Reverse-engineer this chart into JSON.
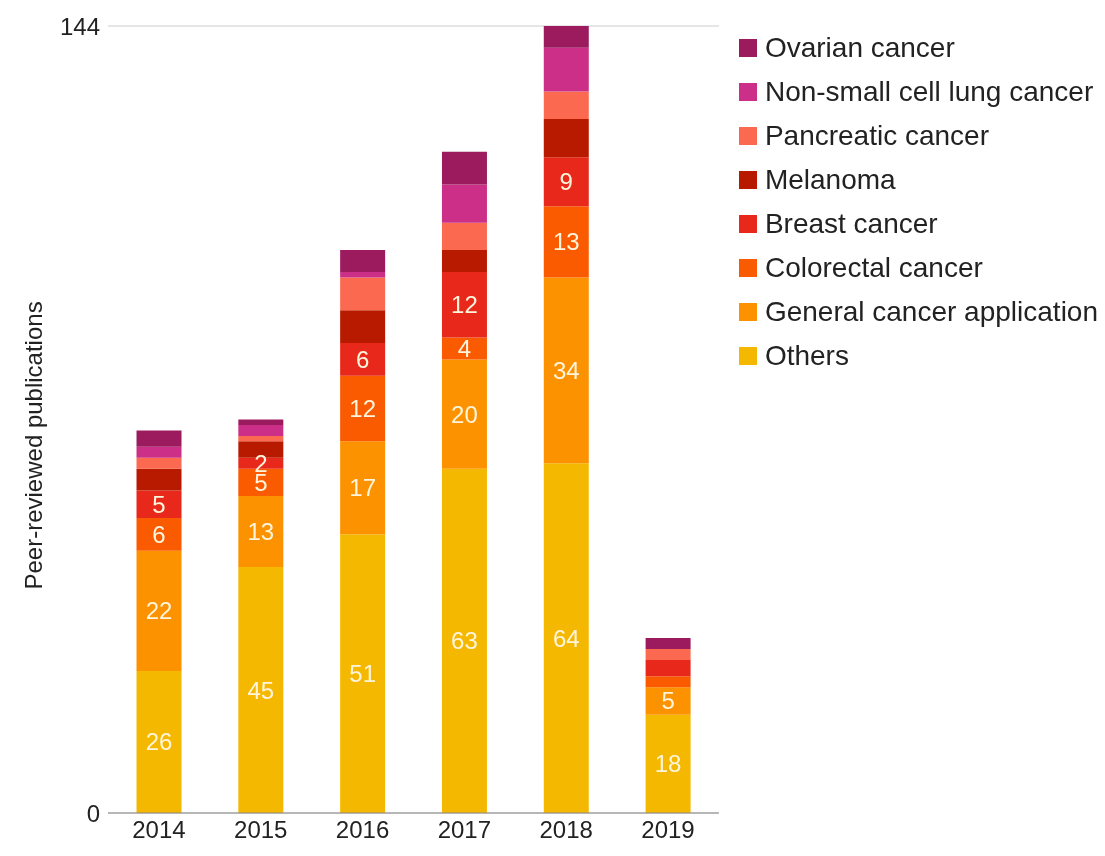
{
  "chart_data": {
    "type": "bar",
    "stacked": true,
    "ylabel": "Peer-reviewed publications",
    "categories": [
      "2014",
      "2015",
      "2016",
      "2017",
      "2018",
      "2019"
    ],
    "ylim": [
      0,
      144
    ],
    "yticks": [
      0,
      144
    ],
    "grid": "y",
    "legend": "right",
    "series": [
      {
        "name": "Others",
        "color": "#f5b800",
        "values": [
          26,
          45,
          51,
          63,
          64,
          18
        ],
        "value_labels": [
          "26",
          "45",
          "51",
          "63",
          "64",
          "18"
        ]
      },
      {
        "name": "General cancer application",
        "color": "#fc9200",
        "values": [
          22,
          13,
          17,
          20,
          34,
          5
        ],
        "value_labels": [
          "22",
          "13",
          "17",
          "20",
          "34",
          "5"
        ]
      },
      {
        "name": "Colorectal cancer",
        "color": "#fa5a00",
        "values": [
          6,
          5,
          12,
          4,
          13,
          2
        ],
        "value_labels": [
          "6",
          "5",
          "12",
          "4",
          "13",
          null
        ]
      },
      {
        "name": "Breast cancer",
        "color": "#e8281a",
        "values": [
          5,
          2,
          6,
          12,
          9,
          3
        ],
        "value_labels": [
          "5",
          "2",
          "6",
          "12",
          "9",
          null
        ]
      },
      {
        "name": "Melanoma",
        "color": "#b81a00",
        "values": [
          4,
          3,
          6,
          4,
          7,
          0
        ]
      },
      {
        "name": "Pancreatic cancer",
        "color": "#fb6a50",
        "values": [
          2,
          1,
          6,
          5,
          5,
          2
        ]
      },
      {
        "name": "Non-small cell lung cancer",
        "color": "#cc2f87",
        "values": [
          2,
          2,
          1,
          7,
          8,
          0
        ]
      },
      {
        "name": "Ovarian cancer",
        "color": "#9b1b5e",
        "values": [
          3,
          1,
          4,
          6,
          4,
          2
        ]
      }
    ]
  }
}
